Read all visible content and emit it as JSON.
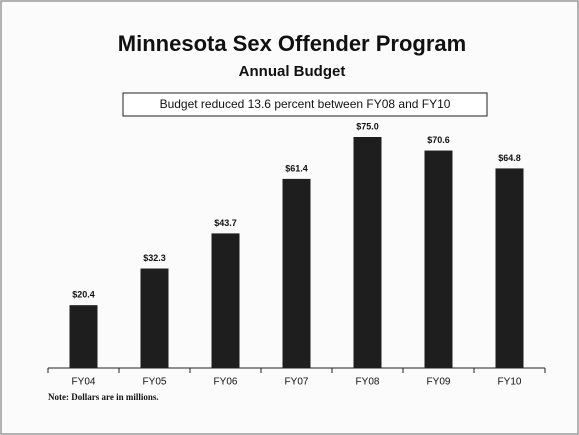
{
  "chart_data": {
    "type": "bar",
    "title": "Minnesota Sex Offender Program",
    "subtitle": "Annual Budget",
    "annotation": "Budget reduced 13.6 percent between FY08 and FY10",
    "note": "Note: Dollars are in millions.",
    "categories": [
      "FY04",
      "FY05",
      "FY06",
      "FY07",
      "FY08",
      "FY09",
      "FY10"
    ],
    "values": [
      20.4,
      32.3,
      43.7,
      61.4,
      75.0,
      70.6,
      64.8
    ],
    "value_labels": [
      "$20.4",
      "$32.3",
      "$43.7",
      "$61.4",
      "$75.0",
      "$70.6",
      "$64.8"
    ],
    "color": "#1e1e1e"
  }
}
